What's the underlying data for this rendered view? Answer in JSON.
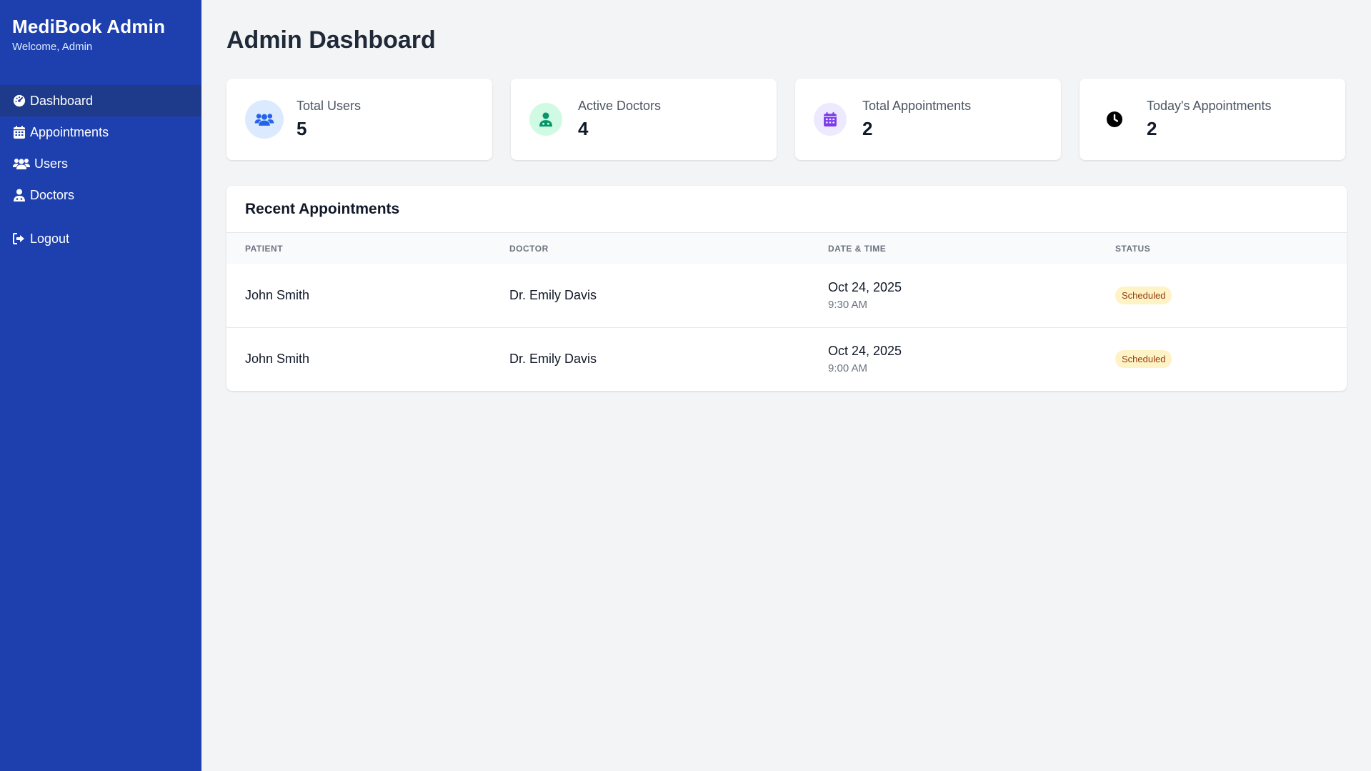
{
  "sidebar": {
    "title": "MediBook Admin",
    "subtitle": "Welcome, Admin",
    "items": [
      {
        "label": "Dashboard",
        "icon": "dashboard-gauge-icon",
        "active": true
      },
      {
        "label": "Appointments",
        "icon": "calendar-icon",
        "active": false
      },
      {
        "label": "Users",
        "icon": "users-icon",
        "active": false
      },
      {
        "label": "Doctors",
        "icon": "doctor-icon",
        "active": false
      }
    ],
    "logout": {
      "label": "Logout",
      "icon": "logout-icon"
    }
  },
  "main": {
    "title": "Admin Dashboard",
    "stats": [
      {
        "label": "Total Users",
        "value": "5",
        "icon": "users-icon",
        "icon_color": "#2563eb",
        "icon_bg": "#dbeafe"
      },
      {
        "label": "Active Doctors",
        "value": "4",
        "icon": "doctor-icon",
        "icon_color": "#059669",
        "icon_bg": "#d1fae5"
      },
      {
        "label": "Total Appointments",
        "value": "2",
        "icon": "calendar-icon",
        "icon_color": "#7c3aed",
        "icon_bg": "#ede9fe"
      },
      {
        "label": "Today's Appointments",
        "value": "2",
        "icon": "clock-icon",
        "icon_color": "#000000",
        "icon_bg": "#ffffff"
      }
    ],
    "recent": {
      "title": "Recent Appointments",
      "columns": [
        "PATIENT",
        "DOCTOR",
        "DATE & TIME",
        "STATUS"
      ],
      "rows": [
        {
          "patient": "John Smith",
          "doctor": "Dr. Emily Davis",
          "date": "Oct 24, 2025",
          "time": "9:30 AM",
          "status": "Scheduled"
        },
        {
          "patient": "John Smith",
          "doctor": "Dr. Emily Davis",
          "date": "Oct 24, 2025",
          "time": "9:00 AM",
          "status": "Scheduled"
        }
      ]
    }
  },
  "colors": {
    "sidebar_bg": "#1e40af",
    "sidebar_active": "#1e3a8a",
    "badge_bg": "#fef3c7",
    "badge_text": "#92400e"
  }
}
